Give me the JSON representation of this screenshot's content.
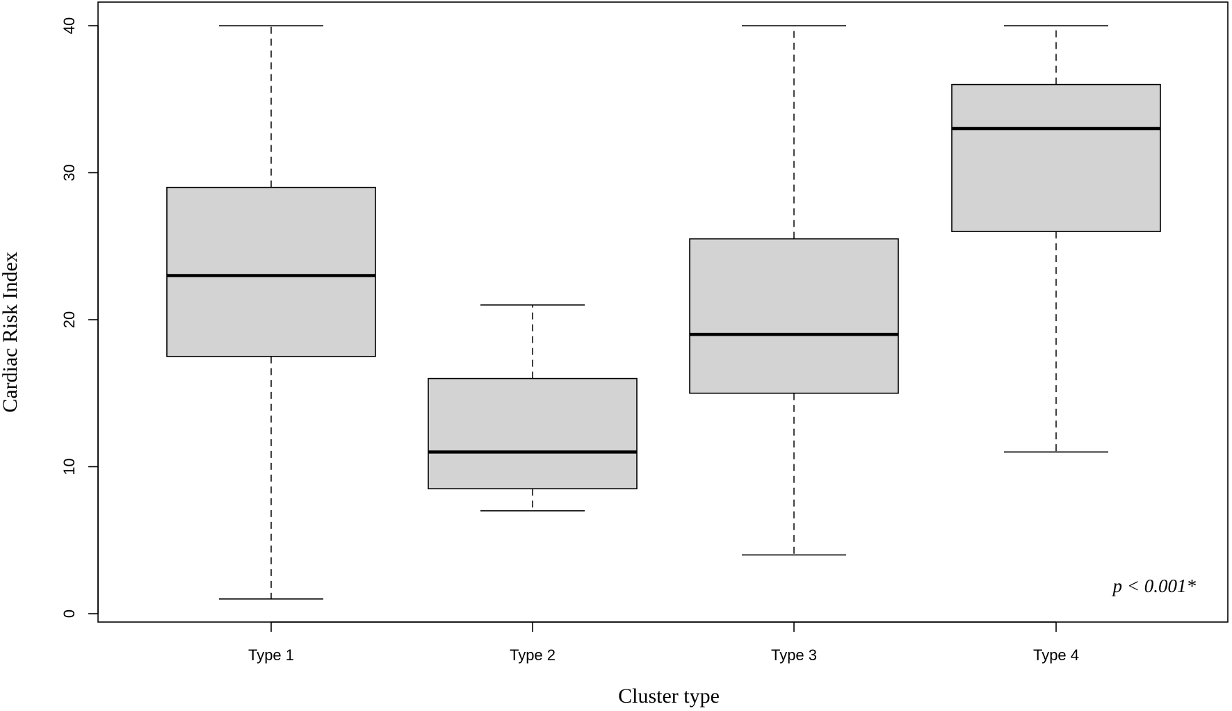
{
  "chart_data": {
    "type": "boxplot",
    "title": "",
    "xlabel": "Cluster type",
    "ylabel": "Cardiac Risk Index",
    "ylim": [
      0,
      40
    ],
    "yticks": [
      "0",
      "10",
      "20",
      "30",
      "40"
    ],
    "grid": false,
    "categories": [
      "Type 1",
      "Type 2",
      "Type 3",
      "Type 4"
    ],
    "boxes": [
      {
        "min": 1,
        "q1": 17.5,
        "median": 23,
        "q3": 29,
        "max": 40
      },
      {
        "min": 7,
        "q1": 8.5,
        "median": 11,
        "q3": 16,
        "max": 21
      },
      {
        "min": 4,
        "q1": 15,
        "median": 19,
        "q3": 25.5,
        "max": 40
      },
      {
        "min": 11,
        "q1": 26,
        "median": 33,
        "q3": 36,
        "max": 40
      }
    ],
    "annotation": "p < 0.001*",
    "colors": {
      "box_fill": "#d3d3d3",
      "line": "#000000"
    }
  }
}
